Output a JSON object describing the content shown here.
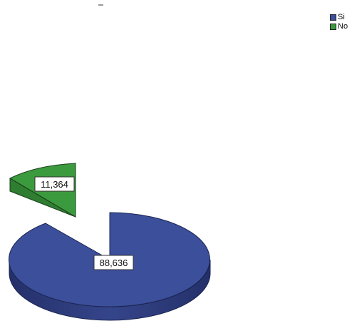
{
  "chart_data": {
    "type": "pie",
    "style": "3d-exploded",
    "series": [
      {
        "name": "Si",
        "value": 88.636,
        "label": "88,636",
        "color": "#3b4f9b",
        "exploded": false
      },
      {
        "name": "No",
        "value": 11.364,
        "label": "11,364",
        "color": "#3c9a3e",
        "exploded": true
      }
    ],
    "legend_position": "top-right"
  },
  "legend": {
    "items": [
      {
        "label": "Si",
        "color": "#3b4f9b"
      },
      {
        "label": "No",
        "color": "#3c9a3e"
      }
    ]
  }
}
